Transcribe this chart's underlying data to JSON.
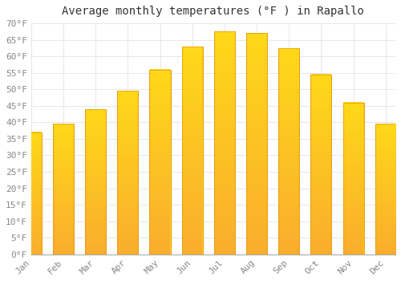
{
  "title": "Average monthly temperatures (°F ) in Rapallo",
  "months": [
    "Jan",
    "Feb",
    "Mar",
    "Apr",
    "May",
    "Jun",
    "Jul",
    "Aug",
    "Sep",
    "Oct",
    "Nov",
    "Dec"
  ],
  "values": [
    37,
    39.5,
    44,
    49.5,
    56,
    63,
    67.5,
    67,
    62.5,
    54.5,
    46,
    39.5
  ],
  "bar_color_mid": "#FFCC00",
  "bar_color_edge": "#E8960A",
  "bar_color_bottom": "#F5A623",
  "ylim": [
    0,
    70
  ],
  "ytick_step": 5,
  "background_color": "#FFFFFF",
  "grid_color": "#DDDDDD",
  "title_fontsize": 10,
  "tick_fontsize": 8,
  "tick_label_color": "#888888",
  "font_family": "monospace"
}
